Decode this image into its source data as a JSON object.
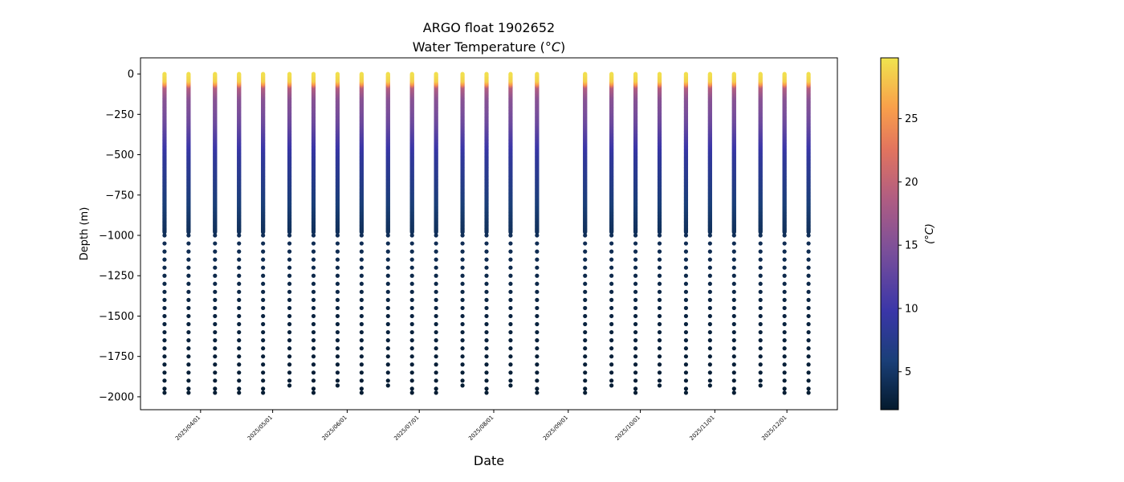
{
  "chart_data": {
    "type": "scatter",
    "title": "ARGO float 1902652",
    "subtitle": "Water Temperature",
    "unit": "°C",
    "xlabel": "Date",
    "ylabel": "Depth (m)",
    "colorbar_label": "°C",
    "ylim": [
      -2080,
      100
    ],
    "xlim": [
      "2025-03-07",
      "2025-12-22"
    ],
    "y_ticks": [
      0,
      -250,
      -500,
      -750,
      -1000,
      -1250,
      -1500,
      -1750,
      -2000
    ],
    "y_tick_labels": [
      "0",
      "−250",
      "−500",
      "−750",
      "−1000",
      "−1250",
      "−1500",
      "−1750",
      "−2000"
    ],
    "x_ticks": [
      "2025-04-01",
      "2025-05-01",
      "2025-06-01",
      "2025-07-01",
      "2025-08-01",
      "2025-09-01",
      "2025-10-01",
      "2025-11-01",
      "2025-12-01"
    ],
    "x_tick_labels": [
      "2025/04/01",
      "2025/05/01",
      "2025/06/01",
      "2025/07/01",
      "2025/08/01",
      "2025/09/01",
      "2025/10/01",
      "2025/11/01",
      "2025/12/01"
    ],
    "colorbar_range": [
      2,
      29.8
    ],
    "colorbar_ticks": [
      5,
      10,
      15,
      20,
      25
    ],
    "colormap": [
      "#041a2d",
      "#1a3f78",
      "#3a36a8",
      "#7a4f9a",
      "#b05d82",
      "#e2745e",
      "#f9a04a",
      "#f0e44e"
    ],
    "profiles": [
      {
        "date": "2025-03-17",
        "max_depth": 1975
      },
      {
        "date": "2025-03-27",
        "max_depth": 1975
      },
      {
        "date": "2025-04-07",
        "max_depth": 1975
      },
      {
        "date": "2025-04-17",
        "max_depth": 1975
      },
      {
        "date": "2025-04-27",
        "max_depth": 1975
      },
      {
        "date": "2025-05-08",
        "max_depth": 1930
      },
      {
        "date": "2025-05-18",
        "max_depth": 1975
      },
      {
        "date": "2025-05-28",
        "max_depth": 1930
      },
      {
        "date": "2025-06-07",
        "max_depth": 1975
      },
      {
        "date": "2025-06-18",
        "max_depth": 1930
      },
      {
        "date": "2025-06-28",
        "max_depth": 1975
      },
      {
        "date": "2025-07-08",
        "max_depth": 1975
      },
      {
        "date": "2025-07-19",
        "max_depth": 1930
      },
      {
        "date": "2025-07-29",
        "max_depth": 1975
      },
      {
        "date": "2025-08-08",
        "max_depth": 1930
      },
      {
        "date": "2025-08-19",
        "max_depth": 1975
      },
      {
        "date": "2025-09-08",
        "max_depth": 1975
      },
      {
        "date": "2025-09-19",
        "max_depth": 1930
      },
      {
        "date": "2025-09-29",
        "max_depth": 1975
      },
      {
        "date": "2025-10-09",
        "max_depth": 1930
      },
      {
        "date": "2025-10-20",
        "max_depth": 1975
      },
      {
        "date": "2025-10-30",
        "max_depth": 1930
      },
      {
        "date": "2025-11-09",
        "max_depth": 1975
      },
      {
        "date": "2025-11-20",
        "max_depth": 1930
      },
      {
        "date": "2025-11-30",
        "max_depth": 1975
      },
      {
        "date": "2025-12-10",
        "max_depth": 1975
      }
    ],
    "temperature_profile": {
      "depths": [
        0,
        40,
        60,
        80,
        150,
        300,
        500,
        700,
        900,
        1000,
        1500,
        2000
      ],
      "temps": [
        29.5,
        28.5,
        25,
        18,
        15,
        13,
        9,
        7,
        5,
        4.2,
        3,
        2.3
      ]
    }
  }
}
